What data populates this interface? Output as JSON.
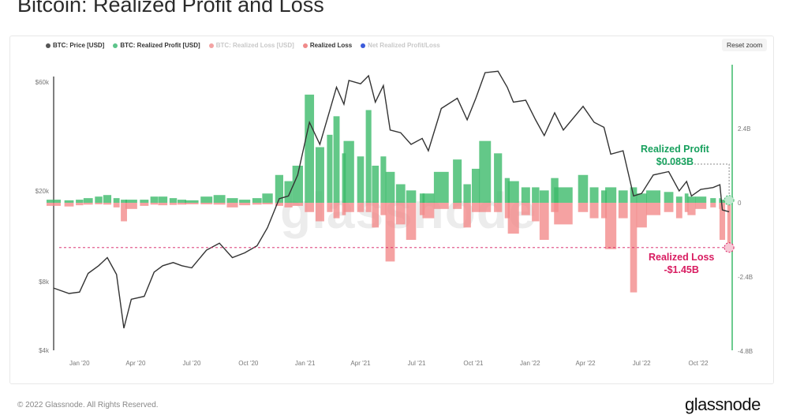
{
  "title": "Bitcoin: Realized Profit and Loss",
  "reset_zoom_label": "Reset zoom",
  "footer": "© 2022 Glassnode. All Rights Reserved.",
  "logo": "glassnode",
  "watermark": "glassnode",
  "colors": {
    "price": "#333333",
    "profit": "#3cba6a",
    "loss": "#f28b8b",
    "net": "#3b5bdb",
    "profit_annotation": "#17a05d",
    "loss_annotation": "#d81b60",
    "axis_line": "#3cba6a"
  },
  "legend": [
    {
      "label": "BTC: Price [USD]",
      "color": "#555555",
      "active": true
    },
    {
      "label": "BTC: Realized Profit [USD]",
      "color": "#5cc48a",
      "active": true
    },
    {
      "label": "BTC: Realized Loss [USD]",
      "color": "#f3a3a3",
      "active": false
    },
    {
      "label": "Realized Loss",
      "color": "#f08a8a",
      "active": true
    },
    {
      "label": "Net Realized Profit/Loss",
      "color": "#3b5bdb",
      "active": false
    }
  ],
  "annotations": {
    "profit_label": "Realized Profit",
    "profit_value": "$0.083B",
    "loss_label": "Realized Loss",
    "loss_value": "-$1.45B"
  },
  "chart_data": {
    "type": "line+bar",
    "title": "Bitcoin: Realized Profit and Loss",
    "x_ticks": [
      "Jan '20",
      "Apr '20",
      "Jul '20",
      "Oct '20",
      "Jan '21",
      "Apr '21",
      "Jul '21",
      "Oct '21",
      "Jan '22",
      "Apr '22",
      "Jul '22",
      "Oct '22"
    ],
    "x_tick_dates": [
      "2020-01-01",
      "2020-04-01",
      "2020-07-01",
      "2020-10-01",
      "2021-01-01",
      "2021-04-01",
      "2021-07-01",
      "2021-10-01",
      "2022-01-01",
      "2022-04-01",
      "2022-07-01",
      "2022-10-01"
    ],
    "x_range": [
      "2019-11-20",
      "2022-11-25"
    ],
    "y_left": {
      "scale": "log",
      "range": [
        4000,
        80000
      ],
      "ticks": [
        4000,
        8000,
        20000,
        60000
      ],
      "tick_labels": [
        "$4k",
        "$8k",
        "$20k",
        "$60k"
      ]
    },
    "y_right": {
      "scale": "linear",
      "unit": "USD billions",
      "range": [
        -4.8,
        4.5
      ],
      "ticks": [
        2.4,
        0,
        -2.4,
        -4.8
      ],
      "tick_labels": [
        "2.4B",
        "0",
        "-2.4B",
        "-4.8B"
      ]
    },
    "profit_reference": 0.083,
    "loss_reference": -1.45,
    "series": [
      {
        "name": "BTC: Price [USD]",
        "type": "line",
        "axis": "left"
      },
      {
        "name": "BTC: Realized Profit [USD]",
        "type": "bar",
        "axis": "right"
      },
      {
        "name": "Realized Loss",
        "type": "bar",
        "axis": "right"
      }
    ],
    "points": [
      {
        "date": "2019-11-20",
        "price": 7500,
        "profit": 0.1,
        "loss": -0.1
      },
      {
        "date": "2019-12-15",
        "price": 7100,
        "profit": 0.08,
        "loss": -0.12
      },
      {
        "date": "2020-01-01",
        "price": 7200,
        "profit": 0.1,
        "loss": -0.08
      },
      {
        "date": "2020-01-15",
        "price": 8700,
        "profit": 0.15,
        "loss": -0.06
      },
      {
        "date": "2020-02-01",
        "price": 9400,
        "profit": 0.2,
        "loss": -0.05
      },
      {
        "date": "2020-02-15",
        "price": 10200,
        "profit": 0.25,
        "loss": -0.06
      },
      {
        "date": "2020-03-01",
        "price": 8600,
        "profit": 0.15,
        "loss": -0.15
      },
      {
        "date": "2020-03-13",
        "price": 5000,
        "profit": 0.1,
        "loss": -0.6
      },
      {
        "date": "2020-03-25",
        "price": 6700,
        "profit": 0.1,
        "loss": -0.2
      },
      {
        "date": "2020-04-15",
        "price": 6900,
        "profit": 0.1,
        "loss": -0.1
      },
      {
        "date": "2020-05-01",
        "price": 8800,
        "profit": 0.2,
        "loss": -0.06
      },
      {
        "date": "2020-05-15",
        "price": 9400,
        "profit": 0.2,
        "loss": -0.08
      },
      {
        "date": "2020-06-01",
        "price": 9700,
        "profit": 0.15,
        "loss": -0.07
      },
      {
        "date": "2020-06-15",
        "price": 9400,
        "profit": 0.1,
        "loss": -0.06
      },
      {
        "date": "2020-07-01",
        "price": 9200,
        "profit": 0.08,
        "loss": -0.05
      },
      {
        "date": "2020-07-25",
        "price": 11000,
        "profit": 0.2,
        "loss": -0.05
      },
      {
        "date": "2020-08-15",
        "price": 11800,
        "profit": 0.25,
        "loss": -0.06
      },
      {
        "date": "2020-09-05",
        "price": 10200,
        "profit": 0.15,
        "loss": -0.15
      },
      {
        "date": "2020-09-25",
        "price": 10700,
        "profit": 0.1,
        "loss": -0.08
      },
      {
        "date": "2020-10-15",
        "price": 11500,
        "profit": 0.15,
        "loss": -0.06
      },
      {
        "date": "2020-11-01",
        "price": 13800,
        "profit": 0.3,
        "loss": -0.05
      },
      {
        "date": "2020-11-20",
        "price": 18500,
        "profit": 0.9,
        "loss": -0.1
      },
      {
        "date": "2020-12-05",
        "price": 19000,
        "profit": 0.7,
        "loss": -0.15
      },
      {
        "date": "2020-12-20",
        "price": 23500,
        "profit": 1.2,
        "loss": -0.1
      },
      {
        "date": "2021-01-08",
        "price": 40000,
        "profit": 3.5,
        "loss": -0.3
      },
      {
        "date": "2021-01-25",
        "price": 32000,
        "profit": 1.8,
        "loss": -0.6
      },
      {
        "date": "2021-02-10",
        "price": 45000,
        "profit": 2.2,
        "loss": -0.3
      },
      {
        "date": "2021-02-21",
        "price": 57000,
        "profit": 2.8,
        "loss": -0.5
      },
      {
        "date": "2021-03-05",
        "price": 48000,
        "profit": 1.6,
        "loss": -0.4
      },
      {
        "date": "2021-03-13",
        "price": 61000,
        "profit": 2.0,
        "loss": -0.3
      },
      {
        "date": "2021-04-01",
        "price": 59000,
        "profit": 1.5,
        "loss": -0.3
      },
      {
        "date": "2021-04-14",
        "price": 64000,
        "profit": 3.0,
        "loss": -0.3
      },
      {
        "date": "2021-04-25",
        "price": 49000,
        "profit": 1.2,
        "loss": -0.8
      },
      {
        "date": "2021-05-08",
        "price": 58000,
        "profit": 1.5,
        "loss": -0.4
      },
      {
        "date": "2021-05-19",
        "price": 37000,
        "profit": 1.0,
        "loss": -1.9
      },
      {
        "date": "2021-06-05",
        "price": 36000,
        "profit": 0.6,
        "loss": -0.7
      },
      {
        "date": "2021-06-22",
        "price": 32000,
        "profit": 0.4,
        "loss": -1.2
      },
      {
        "date": "2021-07-10",
        "price": 34000,
        "profit": 0.3,
        "loss": -0.4
      },
      {
        "date": "2021-07-20",
        "price": 30000,
        "profit": 0.3,
        "loss": -0.5
      },
      {
        "date": "2021-08-10",
        "price": 46000,
        "profit": 1.0,
        "loss": -0.2
      },
      {
        "date": "2021-09-05",
        "price": 51000,
        "profit": 1.4,
        "loss": -0.2
      },
      {
        "date": "2021-09-21",
        "price": 41000,
        "profit": 0.6,
        "loss": -0.8
      },
      {
        "date": "2021-10-05",
        "price": 51000,
        "profit": 1.1,
        "loss": -0.3
      },
      {
        "date": "2021-10-20",
        "price": 66000,
        "profit": 2.0,
        "loss": -0.3
      },
      {
        "date": "2021-11-10",
        "price": 67000,
        "profit": 1.6,
        "loss": -0.3
      },
      {
        "date": "2021-11-25",
        "price": 57000,
        "profit": 0.8,
        "loss": -0.5
      },
      {
        "date": "2021-12-05",
        "price": 49000,
        "profit": 0.7,
        "loss": -1.0
      },
      {
        "date": "2021-12-25",
        "price": 50000,
        "profit": 0.5,
        "loss": -0.4
      },
      {
        "date": "2022-01-10",
        "price": 41000,
        "profit": 0.5,
        "loss": -0.6
      },
      {
        "date": "2022-01-24",
        "price": 35000,
        "profit": 0.4,
        "loss": -1.2
      },
      {
        "date": "2022-02-10",
        "price": 44000,
        "profit": 0.8,
        "loss": -0.3
      },
      {
        "date": "2022-02-24",
        "price": 37000,
        "profit": 0.5,
        "loss": -0.7
      },
      {
        "date": "2022-03-28",
        "price": 47000,
        "profit": 0.9,
        "loss": -0.3
      },
      {
        "date": "2022-04-15",
        "price": 40000,
        "profit": 0.5,
        "loss": -0.5
      },
      {
        "date": "2022-05-01",
        "price": 38000,
        "profit": 0.4,
        "loss": -0.5
      },
      {
        "date": "2022-05-12",
        "price": 29000,
        "profit": 0.5,
        "loss": -1.5
      },
      {
        "date": "2022-06-01",
        "price": 30000,
        "profit": 0.4,
        "loss": -0.5
      },
      {
        "date": "2022-06-18",
        "price": 19000,
        "profit": 0.5,
        "loss": -2.9
      },
      {
        "date": "2022-07-01",
        "price": 19500,
        "profit": 0.3,
        "loss": -0.8
      },
      {
        "date": "2022-07-20",
        "price": 23500,
        "profit": 0.4,
        "loss": -0.4
      },
      {
        "date": "2022-08-14",
        "price": 24300,
        "profit": 0.35,
        "loss": -0.3
      },
      {
        "date": "2022-08-31",
        "price": 20000,
        "profit": 0.2,
        "loss": -0.5
      },
      {
        "date": "2022-09-12",
        "price": 22000,
        "profit": 0.3,
        "loss": -0.3
      },
      {
        "date": "2022-09-20",
        "price": 19000,
        "profit": 0.2,
        "loss": -0.4
      },
      {
        "date": "2022-10-05",
        "price": 20300,
        "profit": 0.2,
        "loss": -0.2
      },
      {
        "date": "2022-10-25",
        "price": 20700,
        "profit": 0.15,
        "loss": -0.15
      },
      {
        "date": "2022-11-05",
        "price": 21300,
        "profit": 0.15,
        "loss": -0.2
      },
      {
        "date": "2022-11-09",
        "price": 16500,
        "profit": 0.1,
        "loss": -1.2
      },
      {
        "date": "2022-11-20",
        "price": 16200,
        "profit": 0.083,
        "loss": -1.45
      }
    ]
  }
}
